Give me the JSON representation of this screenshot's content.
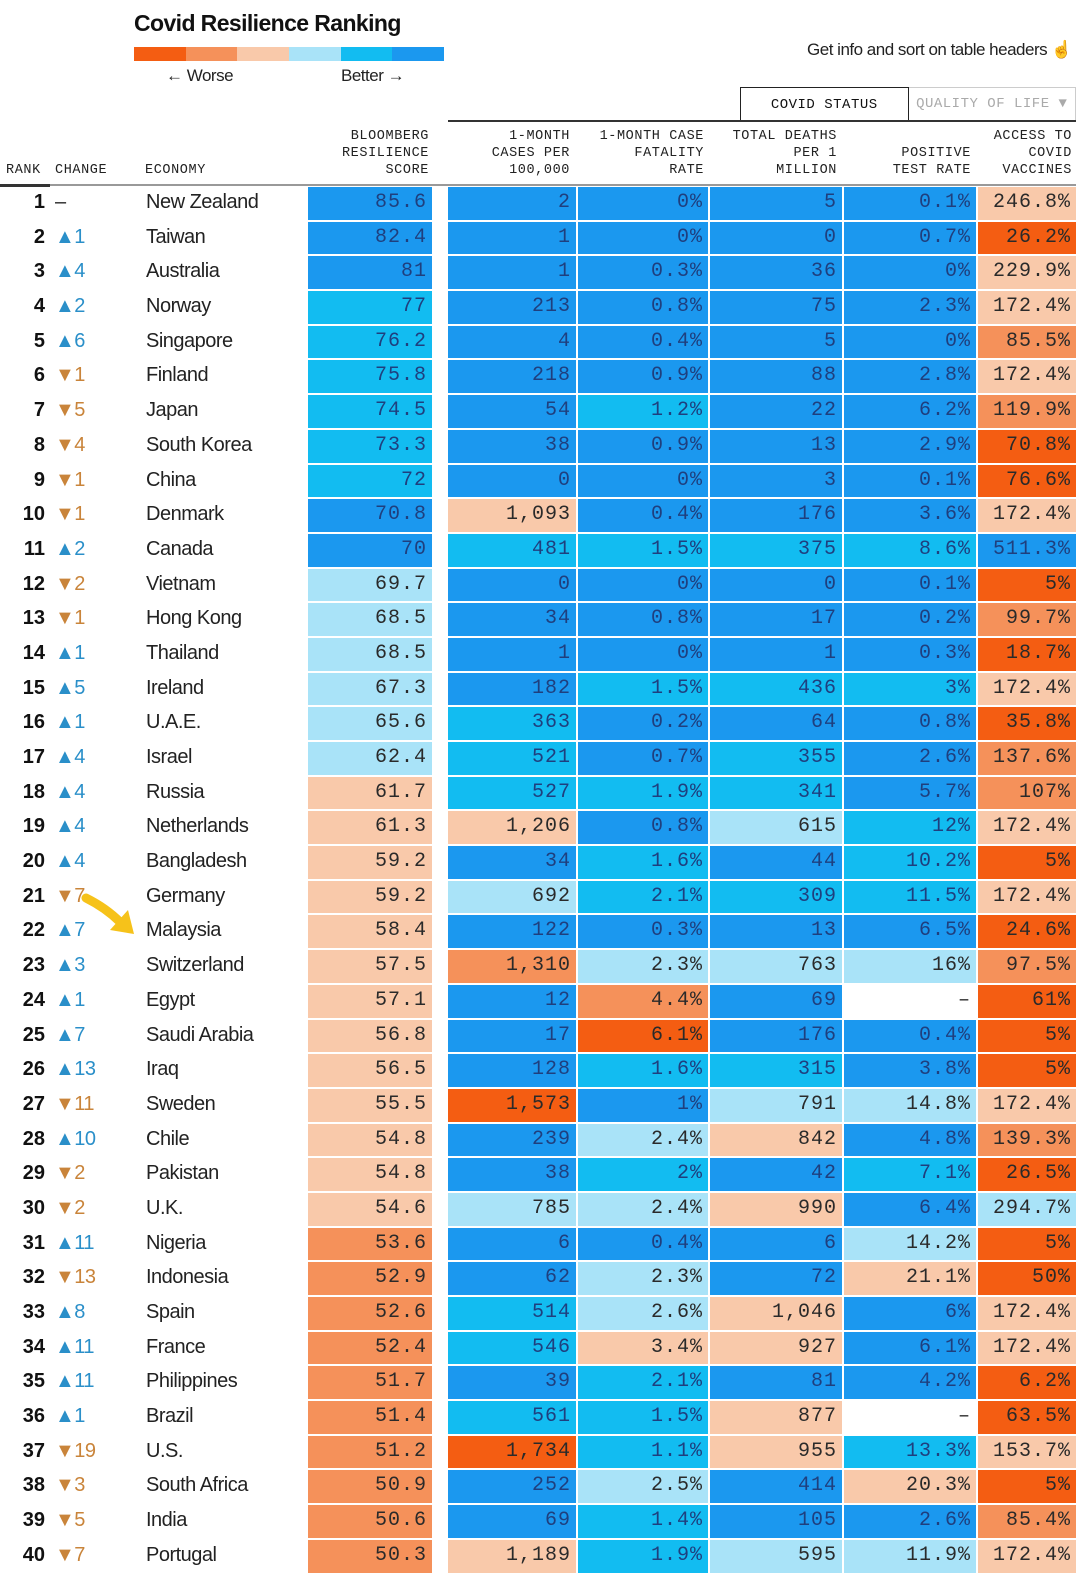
{
  "title": "Covid Resilience Ranking",
  "legend": {
    "worse": "← Worse",
    "better": "Better →",
    "colors": [
      "#f45d12",
      "#f5915a",
      "#f9c9aa",
      "#a9e3f8",
      "#12bcf1",
      "#1b98ef"
    ]
  },
  "hint": "Get info and sort on table headers ☝",
  "tabs": [
    {
      "label": "COVID STATUS",
      "active": true
    },
    {
      "label": "QUALITY OF LIFE ▼",
      "active": false
    }
  ],
  "headers": {
    "rank": "RANK",
    "change": "CHANGE",
    "economy": "ECONOMY",
    "score": "BLOOMBERG\nRESILIENCE\nSCORE",
    "cases": "1-MONTH\nCASES PER\n100,000",
    "cfr": "1-MONTH CASE\nFATALITY\nRATE",
    "deaths": "TOTAL DEATHS\nPER 1\nMILLION",
    "positive": "POSITIVE\nTEST RATE",
    "vaccines": "ACCESS TO\nCOVID\nVACCINES"
  },
  "text_colors": {
    "on_blue": "#1f3f7e",
    "on_light": "#2a2a2a"
  },
  "rows": [
    [
      "1",
      "–",
      "New Zealand",
      "85.6",
      "2",
      "0%",
      "5",
      "0.1%",
      "246.8%",
      [
        5,
        5,
        5,
        5,
        5,
        2
      ]
    ],
    [
      "2",
      "▲1",
      "Taiwan",
      "82.4",
      "1",
      "0%",
      "0",
      "0.7%",
      "26.2%",
      [
        5,
        5,
        5,
        5,
        5,
        0
      ]
    ],
    [
      "3",
      "▲4",
      "Australia",
      "81",
      "1",
      "0.3%",
      "36",
      "0%",
      "229.9%",
      [
        5,
        5,
        5,
        5,
        5,
        2
      ]
    ],
    [
      "4",
      "▲2",
      "Norway",
      "77",
      "213",
      "0.8%",
      "75",
      "2.3%",
      "172.4%",
      [
        4,
        5,
        5,
        5,
        5,
        2
      ]
    ],
    [
      "5",
      "▲6",
      "Singapore",
      "76.2",
      "4",
      "0.4%",
      "5",
      "0%",
      "85.5%",
      [
        4,
        5,
        5,
        5,
        5,
        1
      ]
    ],
    [
      "6",
      "▼1",
      "Finland",
      "75.8",
      "218",
      "0.9%",
      "88",
      "2.8%",
      "172.4%",
      [
        4,
        5,
        5,
        5,
        5,
        2
      ]
    ],
    [
      "7",
      "▼5",
      "Japan",
      "74.5",
      "54",
      "1.2%",
      "22",
      "6.2%",
      "119.9%",
      [
        4,
        5,
        4,
        5,
        5,
        1
      ]
    ],
    [
      "8",
      "▼4",
      "South Korea",
      "73.3",
      "38",
      "0.9%",
      "13",
      "2.9%",
      "70.8%",
      [
        4,
        5,
        5,
        5,
        5,
        0
      ]
    ],
    [
      "9",
      "▼1",
      "China",
      "72",
      "0",
      "0%",
      "3",
      "0.1%",
      "76.6%",
      [
        4,
        5,
        5,
        5,
        5,
        0
      ]
    ],
    [
      "10",
      "▼1",
      "Denmark",
      "70.8",
      "1,093",
      "0.4%",
      "176",
      "3.6%",
      "172.4%",
      [
        5,
        2,
        5,
        5,
        5,
        2
      ]
    ],
    [
      "11",
      "▲2",
      "Canada",
      "70",
      "481",
      "1.5%",
      "375",
      "8.6%",
      "511.3%",
      [
        5,
        4,
        4,
        4,
        4,
        5
      ]
    ],
    [
      "12",
      "▼2",
      "Vietnam",
      "69.7",
      "0",
      "0%",
      "0",
      "0.1%",
      "5%",
      [
        3,
        5,
        5,
        5,
        5,
        0
      ]
    ],
    [
      "13",
      "▼1",
      "Hong Kong",
      "68.5",
      "34",
      "0.8%",
      "17",
      "0.2%",
      "99.7%",
      [
        3,
        5,
        5,
        5,
        5,
        1
      ]
    ],
    [
      "14",
      "▲1",
      "Thailand",
      "68.5",
      "1",
      "0%",
      "1",
      "0.3%",
      "18.7%",
      [
        3,
        5,
        5,
        5,
        5,
        0
      ]
    ],
    [
      "15",
      "▲5",
      "Ireland",
      "67.3",
      "182",
      "1.5%",
      "436",
      "3%",
      "172.4%",
      [
        3,
        5,
        4,
        4,
        4,
        2
      ]
    ],
    [
      "16",
      "▲1",
      "U.A.E.",
      "65.6",
      "363",
      "0.2%",
      "64",
      "0.8%",
      "35.8%",
      [
        3,
        4,
        5,
        5,
        5,
        0
      ]
    ],
    [
      "17",
      "▲4",
      "Israel",
      "62.4",
      "521",
      "0.7%",
      "355",
      "2.6%",
      "137.6%",
      [
        3,
        4,
        5,
        4,
        5,
        1
      ]
    ],
    [
      "18",
      "▲4",
      "Russia",
      "61.7",
      "527",
      "1.9%",
      "341",
      "5.7%",
      "107%",
      [
        2,
        4,
        4,
        4,
        5,
        1
      ]
    ],
    [
      "19",
      "▲4",
      "Netherlands",
      "61.3",
      "1,206",
      "0.8%",
      "615",
      "12%",
      "172.4%",
      [
        2,
        2,
        5,
        3,
        4,
        2
      ]
    ],
    [
      "20",
      "▲4",
      "Bangladesh",
      "59.2",
      "34",
      "1.6%",
      "44",
      "10.2%",
      "5%",
      [
        2,
        5,
        4,
        5,
        4,
        0
      ]
    ],
    [
      "21",
      "▼7",
      "Germany",
      "59.2",
      "692",
      "2.1%",
      "309",
      "11.5%",
      "172.4%",
      [
        2,
        3,
        4,
        4,
        4,
        2
      ]
    ],
    [
      "22",
      "▲7",
      "Malaysia",
      "58.4",
      "122",
      "0.3%",
      "13",
      "6.5%",
      "24.6%",
      [
        2,
        5,
        5,
        5,
        5,
        0
      ]
    ],
    [
      "23",
      "▲3",
      "Switzerland",
      "57.5",
      "1,310",
      "2.3%",
      "763",
      "16%",
      "97.5%",
      [
        2,
        1,
        3,
        3,
        3,
        1
      ]
    ],
    [
      "24",
      "▲1",
      "Egypt",
      "57.1",
      "12",
      "4.4%",
      "69",
      "–",
      "61%",
      [
        2,
        5,
        1,
        5,
        -1,
        0
      ]
    ],
    [
      "25",
      "▲7",
      "Saudi Arabia",
      "56.8",
      "17",
      "6.1%",
      "176",
      "0.4%",
      "5%",
      [
        2,
        5,
        0,
        5,
        5,
        0
      ]
    ],
    [
      "26",
      "▲13",
      "Iraq",
      "56.5",
      "128",
      "1.6%",
      "315",
      "3.8%",
      "5%",
      [
        2,
        5,
        4,
        4,
        5,
        0
      ]
    ],
    [
      "27",
      "▼11",
      "Sweden",
      "55.5",
      "1,573",
      "1%",
      "791",
      "14.8%",
      "172.4%",
      [
        2,
        0,
        5,
        3,
        3,
        2
      ]
    ],
    [
      "28",
      "▲10",
      "Chile",
      "54.8",
      "239",
      "2.4%",
      "842",
      "4.8%",
      "139.3%",
      [
        2,
        5,
        3,
        2,
        5,
        1
      ]
    ],
    [
      "29",
      "▼2",
      "Pakistan",
      "54.8",
      "38",
      "2%",
      "42",
      "7.1%",
      "26.5%",
      [
        2,
        5,
        4,
        5,
        4,
        0
      ]
    ],
    [
      "30",
      "▼2",
      "U.K.",
      "54.6",
      "785",
      "2.4%",
      "990",
      "6.4%",
      "294.7%",
      [
        2,
        3,
        3,
        2,
        5,
        3
      ]
    ],
    [
      "31",
      "▲11",
      "Nigeria",
      "53.6",
      "6",
      "0.4%",
      "6",
      "14.2%",
      "5%",
      [
        1,
        5,
        5,
        5,
        3,
        0
      ]
    ],
    [
      "32",
      "▼13",
      "Indonesia",
      "52.9",
      "62",
      "2.3%",
      "72",
      "21.1%",
      "50%",
      [
        1,
        5,
        3,
        5,
        2,
        0
      ]
    ],
    [
      "33",
      "▲8",
      "Spain",
      "52.6",
      "514",
      "2.6%",
      "1,046",
      "6%",
      "172.4%",
      [
        1,
        4,
        3,
        2,
        5,
        2
      ]
    ],
    [
      "34",
      "▲11",
      "France",
      "52.4",
      "546",
      "3.4%",
      "927",
      "6.1%",
      "172.4%",
      [
        1,
        4,
        2,
        2,
        5,
        2
      ]
    ],
    [
      "35",
      "▲11",
      "Philippines",
      "51.7",
      "39",
      "2.1%",
      "81",
      "4.2%",
      "6.2%",
      [
        1,
        5,
        4,
        5,
        5,
        0
      ]
    ],
    [
      "36",
      "▲1",
      "Brazil",
      "51.4",
      "561",
      "1.5%",
      "877",
      "–",
      "63.5%",
      [
        1,
        4,
        4,
        2,
        -1,
        0
      ]
    ],
    [
      "37",
      "▼19",
      "U.S.",
      "51.2",
      "1,734",
      "1.1%",
      "955",
      "13.3%",
      "153.7%",
      [
        1,
        0,
        4,
        2,
        4,
        2
      ]
    ],
    [
      "38",
      "▼3",
      "South Africa",
      "50.9",
      "252",
      "2.5%",
      "414",
      "20.3%",
      "5%",
      [
        1,
        5,
        3,
        5,
        2,
        0
      ]
    ],
    [
      "39",
      "▼5",
      "India",
      "50.6",
      "69",
      "1.4%",
      "105",
      "2.6%",
      "85.4%",
      [
        1,
        5,
        4,
        5,
        5,
        1
      ]
    ],
    [
      "40",
      "▼7",
      "Portugal",
      "50.3",
      "1,189",
      "1.9%",
      "595",
      "11.9%",
      "172.4%",
      [
        1,
        2,
        4,
        3,
        3,
        2
      ]
    ]
  ]
}
